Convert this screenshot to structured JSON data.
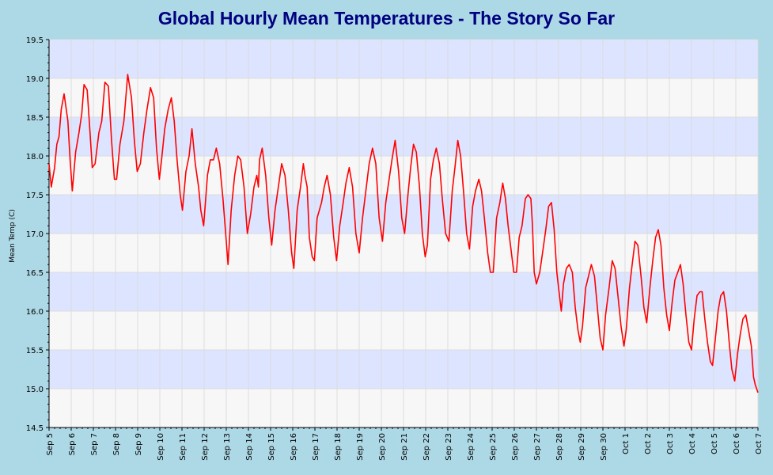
{
  "chart_data": {
    "type": "line",
    "title": "Global Hourly Mean Temperatures - The Story So Far",
    "ylabel": "Mean Temp (C)",
    "xlabel": "",
    "ylim": [
      14.5,
      19.5
    ],
    "y_ticks": [
      "14.5",
      "15.0",
      "15.5",
      "16.0",
      "16.5",
      "17.0",
      "17.5",
      "18.0",
      "18.5",
      "19.0",
      "19.5"
    ],
    "x_ticks": [
      "Sep 5",
      "Sep 6",
      "Sep 7",
      "Sep 8",
      "Sep 9",
      "Sep 10",
      "Sep 11",
      "Sep 12",
      "Sep 13",
      "Sep 14",
      "Sep 15",
      "Sep 16",
      "Sep 17",
      "Sep 18",
      "Sep 19",
      "Sep 20",
      "Sep 21",
      "Sep 22",
      "Sep 23",
      "Sep 24",
      "Sep 25",
      "Sep 26",
      "Sep 27",
      "Sep 28",
      "Sep 29",
      "Sep 30",
      "Oct 1",
      "Oct 2",
      "Oct 3",
      "Oct 4",
      "Oct 5",
      "Oct 6",
      "Oct 7"
    ],
    "grid": true,
    "band_colors": [
      "#f7f7f7",
      "#dde4ff"
    ],
    "line_color": "#ff0000",
    "series": [
      {
        "x_unit": "days after Sep 5 00:00",
        "points": [
          [
            0.0,
            17.9
          ],
          [
            0.1,
            17.6
          ],
          [
            0.25,
            17.85
          ],
          [
            0.35,
            18.15
          ],
          [
            0.45,
            18.25
          ],
          [
            0.55,
            18.6
          ],
          [
            0.68,
            18.8
          ],
          [
            0.85,
            18.45
          ],
          [
            0.95,
            17.95
          ],
          [
            1.05,
            17.55
          ],
          [
            1.2,
            18.05
          ],
          [
            1.35,
            18.3
          ],
          [
            1.48,
            18.55
          ],
          [
            1.58,
            18.92
          ],
          [
            1.72,
            18.85
          ],
          [
            1.85,
            18.3
          ],
          [
            1.95,
            17.85
          ],
          [
            2.08,
            17.9
          ],
          [
            2.25,
            18.3
          ],
          [
            2.38,
            18.45
          ],
          [
            2.52,
            18.95
          ],
          [
            2.68,
            18.9
          ],
          [
            2.82,
            18.2
          ],
          [
            2.95,
            17.7
          ],
          [
            3.05,
            17.7
          ],
          [
            3.2,
            18.15
          ],
          [
            3.38,
            18.45
          ],
          [
            3.55,
            19.05
          ],
          [
            3.72,
            18.75
          ],
          [
            3.85,
            18.2
          ],
          [
            3.98,
            17.8
          ],
          [
            4.12,
            17.9
          ],
          [
            4.28,
            18.3
          ],
          [
            4.42,
            18.6
          ],
          [
            4.58,
            18.88
          ],
          [
            4.72,
            18.75
          ],
          [
            4.85,
            18.1
          ],
          [
            4.98,
            17.7
          ],
          [
            5.08,
            17.95
          ],
          [
            5.22,
            18.35
          ],
          [
            5.38,
            18.6
          ],
          [
            5.52,
            18.75
          ],
          [
            5.65,
            18.45
          ],
          [
            5.78,
            17.95
          ],
          [
            5.92,
            17.5
          ],
          [
            6.02,
            17.3
          ],
          [
            6.18,
            17.8
          ],
          [
            6.32,
            18.0
          ],
          [
            6.45,
            18.35
          ],
          [
            6.6,
            17.9
          ],
          [
            6.75,
            17.6
          ],
          [
            6.85,
            17.3
          ],
          [
            6.98,
            17.1
          ],
          [
            7.15,
            17.75
          ],
          [
            7.28,
            17.95
          ],
          [
            7.42,
            17.95
          ],
          [
            7.55,
            18.1
          ],
          [
            7.7,
            17.9
          ],
          [
            7.85,
            17.45
          ],
          [
            8.0,
            16.9
          ],
          [
            8.08,
            16.6
          ],
          [
            8.22,
            17.3
          ],
          [
            8.38,
            17.75
          ],
          [
            8.52,
            18.0
          ],
          [
            8.65,
            17.95
          ],
          [
            8.8,
            17.6
          ],
          [
            8.95,
            17.0
          ],
          [
            9.1,
            17.25
          ],
          [
            9.25,
            17.6
          ],
          [
            9.38,
            17.75
          ],
          [
            9.45,
            17.6
          ],
          [
            9.5,
            17.95
          ],
          [
            9.62,
            18.1
          ],
          [
            9.78,
            17.75
          ],
          [
            9.92,
            17.2
          ],
          [
            10.05,
            16.85
          ],
          [
            10.2,
            17.3
          ],
          [
            10.35,
            17.6
          ],
          [
            10.5,
            17.9
          ],
          [
            10.65,
            17.75
          ],
          [
            10.8,
            17.3
          ],
          [
            10.95,
            16.75
          ],
          [
            11.05,
            16.55
          ],
          [
            11.2,
            17.3
          ],
          [
            11.35,
            17.6
          ],
          [
            11.48,
            17.9
          ],
          [
            11.55,
            17.75
          ],
          [
            11.65,
            17.6
          ],
          [
            11.75,
            16.95
          ],
          [
            11.88,
            16.7
          ],
          [
            11.98,
            16.65
          ],
          [
            12.1,
            17.2
          ],
          [
            12.2,
            17.3
          ],
          [
            12.3,
            17.4
          ],
          [
            12.42,
            17.6
          ],
          [
            12.55,
            17.75
          ],
          [
            12.7,
            17.5
          ],
          [
            12.85,
            16.95
          ],
          [
            12.98,
            16.65
          ],
          [
            13.12,
            17.1
          ],
          [
            13.28,
            17.4
          ],
          [
            13.4,
            17.65
          ],
          [
            13.55,
            17.85
          ],
          [
            13.7,
            17.6
          ],
          [
            13.85,
            17.0
          ],
          [
            14.0,
            16.75
          ],
          [
            14.15,
            17.2
          ],
          [
            14.3,
            17.55
          ],
          [
            14.45,
            17.9
          ],
          [
            14.6,
            18.1
          ],
          [
            14.75,
            17.9
          ],
          [
            14.9,
            17.2
          ],
          [
            15.05,
            16.9
          ],
          [
            15.2,
            17.4
          ],
          [
            15.35,
            17.7
          ],
          [
            15.48,
            17.95
          ],
          [
            15.62,
            18.2
          ],
          [
            15.78,
            17.8
          ],
          [
            15.92,
            17.2
          ],
          [
            16.05,
            17.0
          ],
          [
            16.2,
            17.5
          ],
          [
            16.32,
            17.85
          ],
          [
            16.45,
            18.15
          ],
          [
            16.58,
            18.05
          ],
          [
            16.72,
            17.6
          ],
          [
            16.85,
            17.0
          ],
          [
            16.98,
            16.7
          ],
          [
            17.08,
            16.85
          ],
          [
            17.22,
            17.7
          ],
          [
            17.35,
            17.95
          ],
          [
            17.48,
            18.1
          ],
          [
            17.62,
            17.9
          ],
          [
            17.75,
            17.45
          ],
          [
            17.9,
            17.0
          ],
          [
            18.05,
            16.9
          ],
          [
            18.2,
            17.55
          ],
          [
            18.32,
            17.85
          ],
          [
            18.45,
            18.2
          ],
          [
            18.58,
            18.0
          ],
          [
            18.72,
            17.5
          ],
          [
            18.85,
            17.0
          ],
          [
            18.98,
            16.8
          ],
          [
            19.12,
            17.35
          ],
          [
            19.25,
            17.55
          ],
          [
            19.4,
            17.7
          ],
          [
            19.52,
            17.55
          ],
          [
            19.65,
            17.2
          ],
          [
            19.8,
            16.75
          ],
          [
            19.92,
            16.5
          ],
          [
            20.05,
            16.5
          ],
          [
            20.2,
            17.2
          ],
          [
            20.35,
            17.4
          ],
          [
            20.48,
            17.65
          ],
          [
            20.6,
            17.45
          ],
          [
            20.72,
            17.1
          ],
          [
            20.85,
            16.8
          ],
          [
            20.98,
            16.5
          ],
          [
            21.1,
            16.5
          ],
          [
            21.22,
            16.95
          ],
          [
            21.35,
            17.1
          ],
          [
            21.5,
            17.45
          ],
          [
            21.62,
            17.5
          ],
          [
            21.75,
            17.45
          ],
          [
            21.82,
            17.1
          ],
          [
            21.9,
            16.5
          ],
          [
            22.0,
            16.35
          ],
          [
            22.15,
            16.5
          ],
          [
            22.3,
            16.8
          ],
          [
            22.42,
            17.05
          ],
          [
            22.55,
            17.35
          ],
          [
            22.68,
            17.4
          ],
          [
            22.8,
            17.05
          ],
          [
            22.92,
            16.5
          ],
          [
            23.0,
            16.3
          ],
          [
            23.12,
            16.0
          ],
          [
            23.22,
            16.35
          ],
          [
            23.35,
            16.55
          ],
          [
            23.48,
            16.6
          ],
          [
            23.62,
            16.5
          ],
          [
            23.75,
            16.05
          ],
          [
            23.88,
            15.75
          ],
          [
            23.98,
            15.6
          ],
          [
            24.08,
            15.8
          ],
          [
            24.22,
            16.3
          ],
          [
            24.35,
            16.45
          ],
          [
            24.48,
            16.6
          ],
          [
            24.62,
            16.45
          ],
          [
            24.75,
            16.05
          ],
          [
            24.88,
            15.65
          ],
          [
            25.0,
            15.5
          ],
          [
            25.12,
            15.95
          ],
          [
            25.28,
            16.3
          ],
          [
            25.42,
            16.65
          ],
          [
            25.55,
            16.55
          ],
          [
            25.68,
            16.2
          ],
          [
            25.82,
            15.8
          ],
          [
            25.95,
            15.55
          ],
          [
            26.05,
            15.75
          ],
          [
            26.2,
            16.3
          ],
          [
            26.32,
            16.6
          ],
          [
            26.45,
            16.9
          ],
          [
            26.58,
            16.85
          ],
          [
            26.72,
            16.45
          ],
          [
            26.85,
            16.05
          ],
          [
            26.98,
            15.85
          ],
          [
            27.12,
            16.3
          ],
          [
            27.25,
            16.65
          ],
          [
            27.38,
            16.95
          ],
          [
            27.5,
            17.05
          ],
          [
            27.62,
            16.85
          ],
          [
            27.75,
            16.3
          ],
          [
            27.88,
            15.95
          ],
          [
            28.0,
            15.75
          ],
          [
            28.12,
            16.1
          ],
          [
            28.25,
            16.4
          ],
          [
            28.38,
            16.5
          ],
          [
            28.5,
            16.6
          ],
          [
            28.62,
            16.35
          ],
          [
            28.75,
            15.95
          ],
          [
            28.88,
            15.6
          ],
          [
            29.0,
            15.5
          ],
          [
            29.12,
            15.9
          ],
          [
            29.25,
            16.2
          ],
          [
            29.38,
            16.25
          ],
          [
            29.48,
            16.25
          ],
          [
            29.6,
            15.9
          ],
          [
            29.72,
            15.6
          ],
          [
            29.85,
            15.35
          ],
          [
            29.95,
            15.3
          ],
          [
            30.08,
            15.65
          ],
          [
            30.2,
            16.0
          ],
          [
            30.32,
            16.2
          ],
          [
            30.45,
            16.25
          ],
          [
            30.58,
            16.0
          ],
          [
            30.7,
            15.6
          ],
          [
            30.82,
            15.25
          ],
          [
            30.95,
            15.1
          ],
          [
            31.08,
            15.45
          ],
          [
            31.2,
            15.7
          ],
          [
            31.32,
            15.9
          ],
          [
            31.45,
            15.95
          ],
          [
            31.58,
            15.75
          ],
          [
            31.7,
            15.55
          ],
          [
            31.8,
            15.15
          ],
          [
            31.88,
            15.05
          ],
          [
            32.0,
            14.95
          ]
        ]
      }
    ]
  }
}
